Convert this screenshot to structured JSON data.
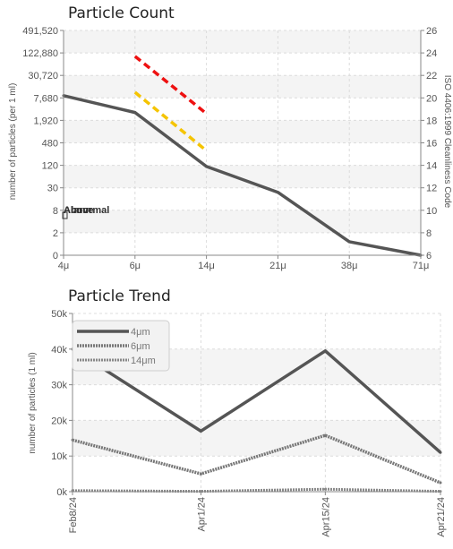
{
  "chart_data": [
    {
      "type": "line",
      "title": "Particle Count",
      "ylabel": "number of particles (per 1 ml)",
      "y2label": "ISO 4406:1999 Cleanliness Code",
      "categories": [
        "4μ",
        "6μ",
        "14μ",
        "21μ",
        "38μ",
        "71μ"
      ],
      "y_ticks": [
        "0",
        "2",
        "8",
        "30",
        "120",
        "480",
        "1,920",
        "7,680",
        "30,720",
        "122,880",
        "491,520"
      ],
      "y2_ticks": [
        "6",
        "8",
        "10",
        "12",
        "14",
        "16",
        "18",
        "20",
        "22",
        "24",
        "26"
      ],
      "y2lim": [
        6,
        26
      ],
      "series": [
        {
          "code_values": [
            20.2,
            18.7,
            13.9,
            11.6,
            7.2,
            6.0
          ],
          "color": "#555555"
        },
        {
          "name": "Alarm",
          "x_range": [
            "6μ",
            "14μ"
          ],
          "code_values": [
            23.7,
            18.6
          ],
          "color": "#ee1111"
        },
        {
          "name": "Abnormal",
          "x_range": [
            "6μ",
            "14μ"
          ],
          "code_values": [
            20.5,
            15.3
          ],
          "color": "#f5c400"
        }
      ],
      "annotations": [
        "Alarm",
        "Above",
        "Abnormal"
      ],
      "grid": true
    },
    {
      "type": "line",
      "title": "Particle Trend",
      "ylabel": "number of particles (1 ml)",
      "categories": [
        "Feb8/24",
        "Apr1/24",
        "Apr15/24",
        "Apr21/24"
      ],
      "x_positions": [
        0,
        0.349,
        0.687,
        1.0
      ],
      "y_ticks": [
        "0k",
        "10k",
        "20k",
        "30k",
        "40k",
        "50k"
      ],
      "ylim": [
        0,
        50000
      ],
      "series": [
        {
          "name": "4μm",
          "values": [
            40000,
            17000,
            39500,
            11000
          ],
          "color": "#555555"
        },
        {
          "name": "6μm",
          "values": [
            14500,
            5000,
            15800,
            2500
          ],
          "color": "#777777"
        },
        {
          "name": "14μm",
          "values": [
            300,
            100,
            700,
            100
          ],
          "color": "#888888"
        }
      ],
      "legend_position": "top-left",
      "grid": true
    }
  ]
}
